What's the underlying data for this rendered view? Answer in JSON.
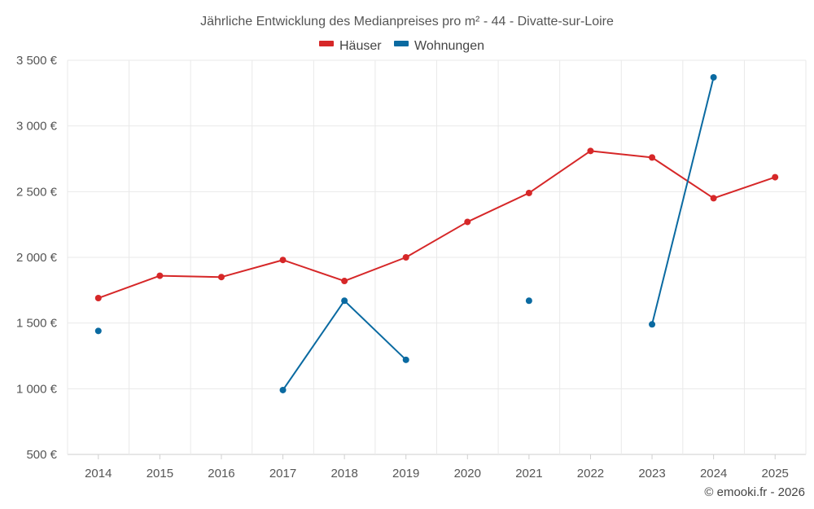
{
  "colors": {
    "houses": "#d62728",
    "apartments": "#0a6aa1",
    "grid": "#e9e9e9",
    "axis": "#cfcfcf"
  },
  "chart_data": {
    "type": "line",
    "title": "Jährliche Entwicklung des Medianpreises pro m² - 44 - Divatte-sur-Loire",
    "categories": [
      "2014",
      "2015",
      "2016",
      "2017",
      "2018",
      "2019",
      "2020",
      "2021",
      "2022",
      "2023",
      "2024",
      "2025"
    ],
    "ylim": [
      500,
      3500
    ],
    "yticks": [
      500,
      1000,
      1500,
      2000,
      2500,
      3000,
      3500
    ],
    "ytick_labels": [
      "500 €",
      "1 000 €",
      "1 500 €",
      "2 000 €",
      "2 500 €",
      "3 000 €",
      "3 500 €"
    ],
    "grid": true,
    "legend_position": "top-center",
    "series": [
      {
        "name": "Häuser",
        "color_key": "houses",
        "values": [
          1690,
          1860,
          1850,
          1980,
          1820,
          2000,
          2270,
          2490,
          2810,
          2760,
          2450,
          2610
        ]
      },
      {
        "name": "Wohnungen",
        "color_key": "apartments",
        "values": [
          1440,
          null,
          null,
          990,
          1670,
          1220,
          null,
          1670,
          null,
          1490,
          3370,
          null
        ]
      }
    ]
  },
  "credit": "© emooki.fr - 2026"
}
